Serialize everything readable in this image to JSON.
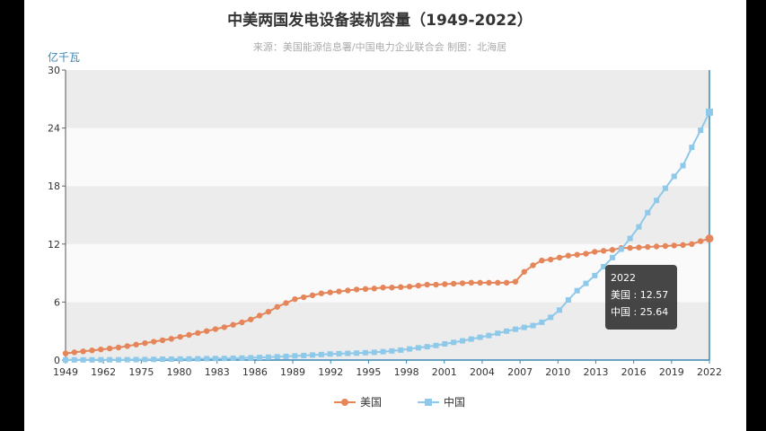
{
  "chart_data": {
    "type": "line",
    "title": "中美两国发电设备装机容量（1949-2022）",
    "subtitle": "来源：美国能源信息署/中国电力企业联合会 制图：北海居",
    "ylabel": "亿千瓦",
    "ylim": [
      0,
      30
    ],
    "yticks": [
      "0",
      "6",
      "12",
      "18",
      "24",
      "30"
    ],
    "xlim": [
      1949,
      2022
    ],
    "xticks": [
      "1949",
      "1962",
      "1975",
      "1980",
      "1983",
      "1986",
      "1989",
      "1992",
      "1995",
      "1998",
      "2001",
      "2004",
      "2007",
      "2010",
      "2013",
      "2016",
      "2019",
      "2022"
    ],
    "grid": true,
    "legend_position": "bottom",
    "series": [
      {
        "name": "美国",
        "color": "#e5855a",
        "marker": "circle",
        "x": [
          1949,
          1950,
          1951,
          1952,
          1953,
          1954,
          1955,
          1956,
          1957,
          1958,
          1959,
          1960,
          1961,
          1962,
          1963,
          1964,
          1965,
          1966,
          1967,
          1968,
          1969,
          1970,
          1971,
          1972,
          1973,
          1974,
          1975,
          1976,
          1977,
          1978,
          1979,
          1980,
          1981,
          1982,
          1983,
          1984,
          1985,
          1986,
          1987,
          1988,
          1989,
          1990,
          1991,
          1992,
          1993,
          1994,
          1995,
          1996,
          1997,
          1998,
          1999,
          2000,
          2001,
          2002,
          2003,
          2004,
          2005,
          2006,
          2007,
          2008,
          2009,
          2010,
          2011,
          2012,
          2013,
          2014,
          2015,
          2016,
          2017,
          2018,
          2019,
          2020,
          2021,
          2022
        ],
        "values": [
          0.69,
          0.8,
          0.9,
          1.0,
          1.1,
          1.2,
          1.3,
          1.45,
          1.6,
          1.75,
          1.9,
          2.05,
          2.2,
          2.4,
          2.6,
          2.8,
          3.0,
          3.2,
          3.4,
          3.65,
          3.9,
          4.2,
          4.6,
          5.0,
          5.5,
          5.9,
          6.3,
          6.5,
          6.7,
          6.9,
          7.0,
          7.1,
          7.2,
          7.3,
          7.35,
          7.4,
          7.5,
          7.5,
          7.55,
          7.6,
          7.7,
          7.8,
          7.8,
          7.85,
          7.9,
          7.95,
          8.0,
          8.0,
          8.0,
          8.0,
          8.0,
          8.11,
          9.13,
          9.8,
          10.3,
          10.4,
          10.6,
          10.8,
          10.9,
          11.0,
          11.2,
          11.3,
          11.4,
          11.6,
          11.6,
          11.65,
          11.7,
          11.75,
          11.8,
          11.85,
          11.9,
          12.0,
          12.3,
          12.57
        ]
      },
      {
        "name": "中国",
        "color": "#8ec9ea",
        "marker": "square",
        "x": [
          1949,
          1950,
          1951,
          1952,
          1953,
          1954,
          1955,
          1956,
          1957,
          1958,
          1959,
          1960,
          1961,
          1962,
          1963,
          1964,
          1965,
          1966,
          1967,
          1968,
          1969,
          1970,
          1971,
          1972,
          1973,
          1974,
          1975,
          1976,
          1977,
          1978,
          1979,
          1980,
          1981,
          1982,
          1983,
          1984,
          1985,
          1986,
          1987,
          1988,
          1989,
          1990,
          1991,
          1992,
          1993,
          1994,
          1995,
          1996,
          1997,
          1998,
          1999,
          2000,
          2001,
          2002,
          2003,
          2004,
          2005,
          2006,
          2007,
          2008,
          2009,
          2010,
          2011,
          2012,
          2013,
          2014,
          2015,
          2016,
          2017,
          2018,
          2019,
          2020,
          2021,
          2022
        ],
        "values": [
          0.02,
          0.02,
          0.02,
          0.02,
          0.03,
          0.03,
          0.03,
          0.04,
          0.05,
          0.06,
          0.07,
          0.09,
          0.1,
          0.11,
          0.12,
          0.13,
          0.15,
          0.16,
          0.17,
          0.19,
          0.21,
          0.24,
          0.27,
          0.3,
          0.34,
          0.38,
          0.43,
          0.47,
          0.52,
          0.57,
          0.63,
          0.66,
          0.69,
          0.72,
          0.76,
          0.8,
          0.87,
          0.94,
          1.03,
          1.15,
          1.27,
          1.38,
          1.51,
          1.67,
          1.83,
          1.99,
          2.17,
          2.36,
          2.54,
          2.77,
          2.99,
          3.19,
          3.38,
          3.57,
          3.91,
          4.42,
          5.17,
          6.22,
          7.18,
          7.93,
          8.74,
          9.66,
          10.6,
          11.47,
          12.58,
          13.78,
          15.25,
          16.51,
          17.77,
          19.0,
          20.11,
          22.0,
          23.77,
          25.64
        ]
      }
    ],
    "tooltip": {
      "title": "2022",
      "rows": [
        "美国 : 12.57",
        "中国 : 25.64"
      ]
    }
  }
}
